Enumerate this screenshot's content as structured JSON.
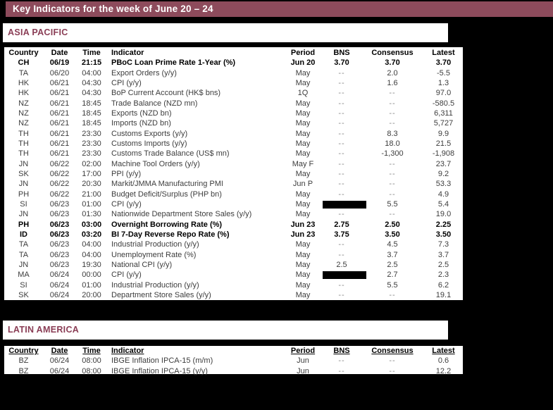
{
  "title": "Key Indicators for the week of June 20 – 24",
  "colors": {
    "maroon": "#8D4B5C",
    "section_text": "#8A3D55",
    "redaction": "#000000"
  },
  "asia": {
    "heading": "ASIA PACIFIC",
    "columns": [
      "Country",
      "Date",
      "Time",
      "Indicator",
      "Period",
      "BNS",
      "Consensus",
      "Latest"
    ],
    "rows": [
      {
        "country": "CH",
        "date": "06/19",
        "time": "21:15",
        "indicator": "PBoC Loan Prime Rate 1-Year (%)",
        "period": "Jun 20",
        "bns": "3.70",
        "consensus": "3.70",
        "latest": "3.70",
        "bold": true
      },
      {
        "country": "TA",
        "date": "06/20",
        "time": "04:00",
        "indicator": "Export Orders (y/y)",
        "period": "May",
        "bns": "--",
        "consensus": "2.0",
        "latest": "-5.5"
      },
      {
        "country": "HK",
        "date": "06/21",
        "time": "04:30",
        "indicator": "CPI (y/y)",
        "period": "May",
        "bns": "--",
        "consensus": "1.6",
        "latest": "1.3"
      },
      {
        "country": "HK",
        "date": "06/21",
        "time": "04:30",
        "indicator": "BoP Current Account (HK$ bns)",
        "period": "1Q",
        "bns": "--",
        "consensus": "--",
        "latest": "97.0"
      },
      {
        "country": "NZ",
        "date": "06/21",
        "time": "18:45",
        "indicator": "Trade Balance (NZD mn)",
        "period": "May",
        "bns": "--",
        "consensus": "--",
        "latest": "-580.5"
      },
      {
        "country": "NZ",
        "date": "06/21",
        "time": "18:45",
        "indicator": "Exports (NZD bn)",
        "period": "May",
        "bns": "--",
        "consensus": "--",
        "latest": "6,311"
      },
      {
        "country": "NZ",
        "date": "06/21",
        "time": "18:45",
        "indicator": "Imports (NZD bn)",
        "period": "May",
        "bns": "--",
        "consensus": "--",
        "latest": "5,727"
      },
      {
        "country": "TH",
        "date": "06/21",
        "time": "23:30",
        "indicator": "Customs Exports (y/y)",
        "period": "May",
        "bns": "--",
        "consensus": "8.3",
        "latest": "9.9"
      },
      {
        "country": "TH",
        "date": "06/21",
        "time": "23:30",
        "indicator": "Customs Imports (y/y)",
        "period": "May",
        "bns": "--",
        "consensus": "18.0",
        "latest": "21.5"
      },
      {
        "country": "TH",
        "date": "06/21",
        "time": "23:30",
        "indicator": "Customs Trade Balance (US$ mn)",
        "period": "May",
        "bns": "--",
        "consensus": "-1,300",
        "latest": "-1,908"
      },
      {
        "country": "JN",
        "date": "06/22",
        "time": "02:00",
        "indicator": "Machine Tool Orders (y/y)",
        "period": "May F",
        "bns": "--",
        "consensus": "--",
        "latest": "23.7"
      },
      {
        "country": "SK",
        "date": "06/22",
        "time": "17:00",
        "indicator": "PPI (y/y)",
        "period": "May",
        "bns": "--",
        "consensus": "--",
        "latest": "9.2"
      },
      {
        "country": "JN",
        "date": "06/22",
        "time": "20:30",
        "indicator": "Markit/JMMA Manufacturing PMI",
        "period": "Jun P",
        "bns": "--",
        "consensus": "--",
        "latest": "53.3"
      },
      {
        "country": "PH",
        "date": "06/22",
        "time": "21:00",
        "indicator": "Budget Deficit/Surplus (PHP bn)",
        "period": "May",
        "bns": "--",
        "consensus": "--",
        "latest": "4.9"
      },
      {
        "country": "SI",
        "date": "06/23",
        "time": "01:00",
        "indicator": "CPI (y/y)",
        "period": "May",
        "bns": "",
        "bns_redacted": true,
        "consensus": "5.5",
        "latest": "5.4"
      },
      {
        "country": "JN",
        "date": "06/23",
        "time": "01:30",
        "indicator": "Nationwide Department Store Sales (y/y)",
        "period": "May",
        "bns": "--",
        "consensus": "--",
        "latest": "19.0"
      },
      {
        "country": "PH",
        "date": "06/23",
        "time": "03:00",
        "indicator": "Overnight Borrowing Rate (%)",
        "period": "Jun 23",
        "bns": "2.75",
        "consensus": "2.50",
        "latest": "2.25",
        "bold": true
      },
      {
        "country": "ID",
        "date": "06/23",
        "time": "03:20",
        "indicator": "BI 7-Day Reverse Repo Rate (%)",
        "period": "Jun 23",
        "bns": "3.75",
        "consensus": "3.50",
        "latest": "3.50",
        "bold": true
      },
      {
        "country": "TA",
        "date": "06/23",
        "time": "04:00",
        "indicator": "Industrial Production (y/y)",
        "period": "May",
        "bns": "--",
        "consensus": "4.5",
        "latest": "7.3"
      },
      {
        "country": "TA",
        "date": "06/23",
        "time": "04:00",
        "indicator": "Unemployment Rate (%)",
        "period": "May",
        "bns": "--",
        "consensus": "3.7",
        "latest": "3.7"
      },
      {
        "country": "JN",
        "date": "06/23",
        "time": "19:30",
        "indicator": "National CPI (y/y)",
        "period": "May",
        "bns": "2.5",
        "consensus": "2.5",
        "latest": "2.5"
      },
      {
        "country": "MA",
        "date": "06/24",
        "time": "00:00",
        "indicator": "CPI (y/y)",
        "period": "May",
        "bns": "",
        "bns_redacted": true,
        "consensus": "2.7",
        "latest": "2.3"
      },
      {
        "country": "SI",
        "date": "06/24",
        "time": "01:00",
        "indicator": "Industrial Production (y/y)",
        "period": "May",
        "bns": "--",
        "consensus": "5.5",
        "latest": "6.2"
      },
      {
        "country": "SK",
        "date": "06/24",
        "time": "20:00",
        "indicator": "Department Store Sales (y/y)",
        "period": "May",
        "bns": "--",
        "consensus": "--",
        "latest": "19.1"
      }
    ]
  },
  "latam": {
    "heading": "LATIN AMERICA",
    "columns": [
      "Country",
      "Date",
      "Time",
      "Indicator",
      "Period",
      "BNS",
      "Consensus",
      "Latest"
    ],
    "rows": [
      {
        "country": "BZ",
        "date": "06/24",
        "time": "08:00",
        "indicator": "IBGE Inflation IPCA-15 (m/m)",
        "period": "Jun",
        "bns": "--",
        "consensus": "--",
        "latest": "0.6"
      },
      {
        "country": "BZ",
        "date": "06/24",
        "time": "08:00",
        "indicator": "IBGE Inflation IPCA-15 (y/y)",
        "period": "Jun",
        "bns": "--",
        "consensus": "--",
        "latest": "12.2"
      }
    ]
  }
}
